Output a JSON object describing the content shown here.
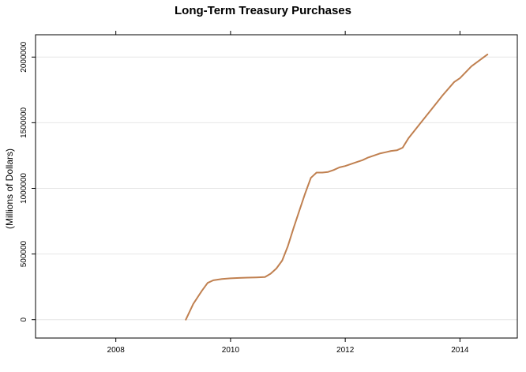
{
  "chart_data": {
    "type": "line",
    "title": "Long-Term Treasury Purchases",
    "xlabel": "",
    "ylabel": "(Millions of Dollars)",
    "xlim": [
      2006.6,
      2015.0
    ],
    "ylim": [
      -140000,
      2170000
    ],
    "x_ticks": [
      2008,
      2010,
      2012,
      2014
    ],
    "x_tick_labels": [
      "2008",
      "2010",
      "2012",
      "2014"
    ],
    "y_ticks": [
      0,
      500000,
      1000000,
      1500000,
      2000000
    ],
    "y_tick_labels": [
      "0",
      "500000",
      "1000000",
      "1500000",
      "2000000"
    ],
    "grid": "horizontal",
    "line_color": "#c08050",
    "series": [
      {
        "x": [
          2009.22,
          2009.35,
          2009.5,
          2009.6,
          2009.7,
          2009.85,
          2010.0,
          2010.15,
          2010.3,
          2010.45,
          2010.6,
          2010.7,
          2010.8,
          2010.9,
          2011.0,
          2011.1,
          2011.2,
          2011.3,
          2011.4,
          2011.5,
          2011.6,
          2011.7,
          2011.8,
          2011.9,
          2012.0,
          2012.1,
          2012.2,
          2012.3,
          2012.4,
          2012.5,
          2012.6,
          2012.7,
          2012.8,
          2012.9,
          2013.0,
          2013.1,
          2013.3,
          2013.5,
          2013.7,
          2013.9,
          2014.0,
          2014.2,
          2014.48
        ],
        "y": [
          0,
          120000,
          220000,
          280000,
          300000,
          310000,
          315000,
          318000,
          320000,
          322000,
          325000,
          350000,
          390000,
          450000,
          560000,
          700000,
          830000,
          960000,
          1080000,
          1120000,
          1120000,
          1125000,
          1140000,
          1160000,
          1170000,
          1185000,
          1200000,
          1215000,
          1235000,
          1250000,
          1265000,
          1275000,
          1285000,
          1290000,
          1310000,
          1380000,
          1490000,
          1600000,
          1710000,
          1810000,
          1840000,
          1930000,
          2020000
        ]
      }
    ]
  }
}
